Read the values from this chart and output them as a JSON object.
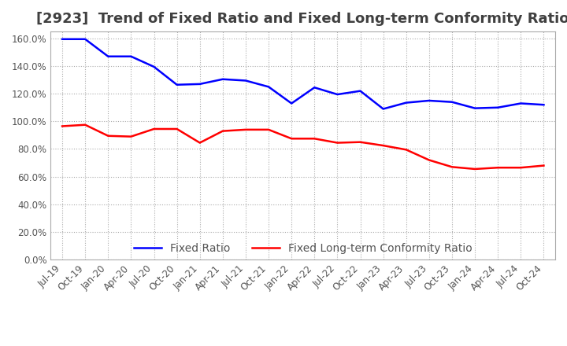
{
  "title": "[2923]  Trend of Fixed Ratio and Fixed Long-term Conformity Ratio",
  "x_labels": [
    "Jul-19",
    "Oct-19",
    "Jan-20",
    "Apr-20",
    "Jul-20",
    "Oct-20",
    "Jan-21",
    "Apr-21",
    "Jul-21",
    "Oct-21",
    "Jan-22",
    "Apr-22",
    "Jul-22",
    "Oct-22",
    "Jan-23",
    "Apr-23",
    "Jul-23",
    "Oct-23",
    "Jan-24",
    "Apr-24",
    "Jul-24",
    "Oct-24"
  ],
  "fixed_ratio": [
    1.595,
    1.595,
    1.47,
    1.47,
    1.395,
    1.265,
    1.27,
    1.305,
    1.295,
    1.25,
    1.13,
    1.245,
    1.195,
    1.22,
    1.09,
    1.135,
    1.15,
    1.14,
    1.095,
    1.1,
    1.13,
    1.12
  ],
  "fixed_lt_ratio": [
    0.965,
    0.975,
    0.895,
    0.89,
    0.945,
    0.945,
    0.845,
    0.93,
    0.94,
    0.94,
    0.875,
    0.875,
    0.845,
    0.85,
    0.825,
    0.795,
    0.72,
    0.67,
    0.655,
    0.665,
    0.665,
    0.68
  ],
  "fixed_ratio_color": "#0000FF",
  "fixed_lt_ratio_color": "#FF0000",
  "ylim": [
    0.0,
    1.65
  ],
  "yticks": [
    0.0,
    0.2,
    0.4,
    0.6,
    0.8,
    1.0,
    1.2,
    1.4,
    1.6
  ],
  "background_color": "#FFFFFF",
  "grid_color": "#AAAAAA",
  "title_fontsize": 13,
  "legend_fontsize": 10,
  "tick_fontsize": 8.5
}
